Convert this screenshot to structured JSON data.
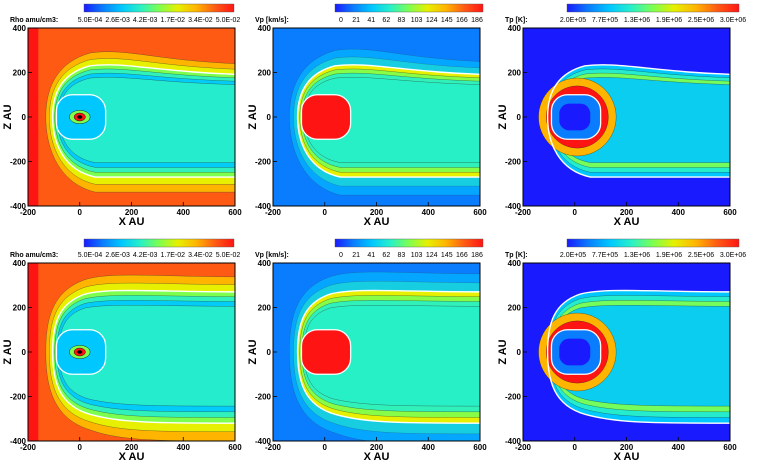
{
  "chart_data": [
    {
      "type": "heatmap",
      "quantity": "rho",
      "row": 0,
      "col": 0,
      "colorbar_title": "Rho amu/cm3:",
      "colorbar_ticks": [
        "5.0E-04",
        "2.6E-03",
        "4.2E-03",
        "1.7E-02",
        "3.4E-02",
        "5.0E-02"
      ],
      "xlabel": "X AU",
      "ylabel": "Z AU",
      "xlim": [
        -200,
        600
      ],
      "ylim": [
        -400,
        400
      ],
      "xticks": [
        "-200",
        "0",
        "200",
        "400",
        "600"
      ],
      "yticks": [
        "400",
        "200",
        "0",
        "-200",
        "-400"
      ],
      "tail": "open"
    },
    {
      "type": "heatmap",
      "quantity": "vp",
      "row": 0,
      "col": 1,
      "colorbar_title": "Vp [km/s]:",
      "colorbar_ticks": [
        "0",
        "21",
        "41",
        "62",
        "83",
        "103",
        "124",
        "145",
        "166",
        "186"
      ],
      "xlabel": "X AU",
      "ylabel": "Z AU",
      "xlim": [
        -200,
        600
      ],
      "ylim": [
        -400,
        400
      ],
      "xticks": [
        "-200",
        "0",
        "200",
        "400",
        "600"
      ],
      "yticks": [
        "400",
        "200",
        "0",
        "-200",
        "-400"
      ],
      "tail": "open"
    },
    {
      "type": "heatmap",
      "quantity": "tp",
      "row": 0,
      "col": 2,
      "colorbar_title": "Tp [K]:",
      "colorbar_ticks": [
        "2.0E+05",
        "7.7E+05",
        "1.3E+06",
        "1.9E+06",
        "2.5E+06",
        "3.0E+06"
      ],
      "xlabel": "X AU",
      "ylabel": "Z AU",
      "xlim": [
        -200,
        600
      ],
      "ylim": [
        -400,
        400
      ],
      "xticks": [
        "-200",
        "0",
        "200",
        "400",
        "600"
      ],
      "yticks": [
        "400",
        "200",
        "0",
        "-200",
        "-400"
      ],
      "tail": "open"
    },
    {
      "type": "heatmap",
      "quantity": "rho",
      "row": 1,
      "col": 0,
      "colorbar_title": "Rho amu/cm3:",
      "colorbar_ticks": [
        "5.0E-04",
        "2.6E-03",
        "4.2E-03",
        "1.7E-02",
        "3.4E-02",
        "5.0E-02"
      ],
      "xlabel": "X AU",
      "ylabel": "Z AU",
      "xlim": [
        -200,
        600
      ],
      "ylim": [
        -400,
        400
      ],
      "xticks": [
        "-200",
        "0",
        "200",
        "400",
        "600"
      ],
      "yticks": [
        "400",
        "200",
        "0",
        "-200",
        "-400"
      ],
      "tail": "closed"
    },
    {
      "type": "heatmap",
      "quantity": "vp",
      "row": 1,
      "col": 1,
      "colorbar_title": "Vp [km/s]:",
      "colorbar_ticks": [
        "0",
        "21",
        "41",
        "62",
        "83",
        "103",
        "124",
        "145",
        "166",
        "186"
      ],
      "xlabel": "X AU",
      "ylabel": "Z AU",
      "xlim": [
        -200,
        600
      ],
      "ylim": [
        -400,
        400
      ],
      "xticks": [
        "-200",
        "0",
        "200",
        "400",
        "600"
      ],
      "yticks": [
        "400",
        "200",
        "0",
        "-200",
        "-400"
      ],
      "tail": "closed"
    },
    {
      "type": "heatmap",
      "quantity": "tp",
      "row": 1,
      "col": 2,
      "colorbar_title": "Tp [K]:",
      "colorbar_ticks": [
        "2.0E+05",
        "7.7E+05",
        "1.3E+06",
        "1.9E+06",
        "2.5E+06",
        "3.0E+06"
      ],
      "xlabel": "X AU",
      "ylabel": "Z AU",
      "xlim": [
        -200,
        600
      ],
      "ylim": [
        -400,
        400
      ],
      "xticks": [
        "-200",
        "0",
        "200",
        "400",
        "600"
      ],
      "yticks": [
        "400",
        "200",
        "0",
        "-200",
        "-400"
      ],
      "tail": "closed"
    }
  ],
  "colormap": [
    "#1a1aff",
    "#0a7dff",
    "#00c8ff",
    "#28f0c8",
    "#7dff50",
    "#e6f000",
    "#ffb400",
    "#ff5a14",
    "#ff1414"
  ],
  "colors": {
    "heliopause": "#ffffff",
    "contour": "#000000",
    "frame": "#000000"
  }
}
